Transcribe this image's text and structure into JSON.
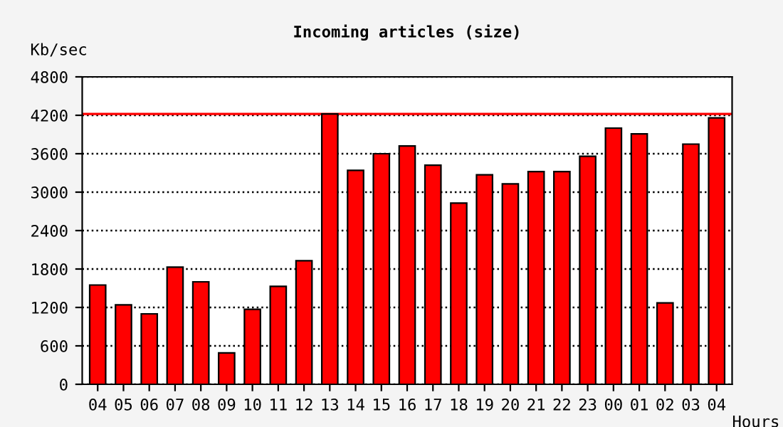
{
  "chart_data": {
    "type": "bar",
    "title": "Incoming articles (size)",
    "ylabel": "Kb/sec",
    "xlabel": "Hours",
    "categories": [
      "04",
      "05",
      "06",
      "07",
      "08",
      "09",
      "10",
      "11",
      "12",
      "13",
      "14",
      "15",
      "16",
      "17",
      "18",
      "19",
      "20",
      "21",
      "22",
      "23",
      "00",
      "01",
      "02",
      "03",
      "04"
    ],
    "values": [
      1550,
      1240,
      1100,
      1830,
      1600,
      490,
      1170,
      1530,
      1930,
      4220,
      3340,
      3600,
      3720,
      3420,
      2830,
      3270,
      3130,
      3320,
      3320,
      3560,
      4000,
      3910,
      1270,
      3750,
      4160
    ],
    "color": "#ff0000",
    "ylim": [
      0,
      4800
    ],
    "yticks": [
      0,
      600,
      1200,
      1800,
      2400,
      3000,
      3600,
      4200,
      4800
    ],
    "grid": "y",
    "line_style": "dotted",
    "ref_lines": [
      {
        "axis": "y",
        "value": 4220,
        "color": "#ff0000",
        "line_style": "solid"
      }
    ]
  }
}
